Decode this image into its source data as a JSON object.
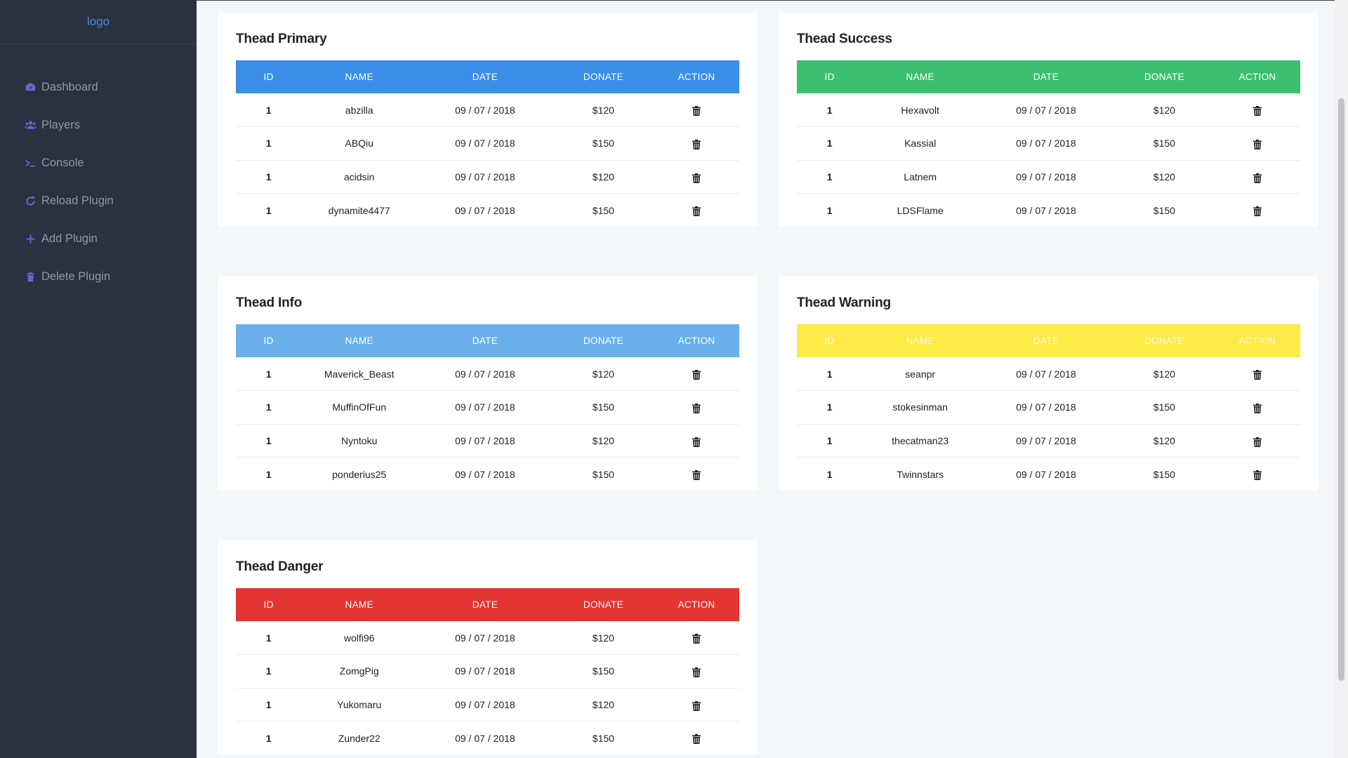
{
  "sidebar": {
    "logo": "logo",
    "items": [
      {
        "label": "Dashboard",
        "icon": "dashboard-icon"
      },
      {
        "label": "Players",
        "icon": "users-icon"
      },
      {
        "label": "Console",
        "icon": "terminal-icon"
      },
      {
        "label": "Reload Plugin",
        "icon": "reload-icon"
      },
      {
        "label": "Add Plugin",
        "icon": "plus-icon"
      },
      {
        "label": "Delete Plugin",
        "icon": "trash-icon"
      }
    ]
  },
  "columns": [
    "ID",
    "NAME",
    "DATE",
    "DONATE",
    "ACTION"
  ],
  "colors": {
    "primary": "#3a8ee6",
    "success": "#3cbf6f",
    "info": "#6ab0ea",
    "warning": "#fdeb45",
    "danger": "#e43533"
  },
  "cards": {
    "primary": {
      "title": "Thead Primary",
      "rows": [
        {
          "id": "1",
          "name": "abzilla",
          "date": "09 / 07 / 2018",
          "donate": "$120"
        },
        {
          "id": "1",
          "name": "ABQiu",
          "date": "09 / 07 / 2018",
          "donate": "$150"
        },
        {
          "id": "1",
          "name": "acidsin",
          "date": "09 / 07 / 2018",
          "donate": "$120"
        },
        {
          "id": "1",
          "name": "dynamite4477",
          "date": "09 / 07 / 2018",
          "donate": "$150"
        }
      ]
    },
    "success": {
      "title": "Thead Success",
      "rows": [
        {
          "id": "1",
          "name": "Hexavolt",
          "date": "09 / 07 / 2018",
          "donate": "$120"
        },
        {
          "id": "1",
          "name": "Kassial",
          "date": "09 / 07 / 2018",
          "donate": "$150"
        },
        {
          "id": "1",
          "name": "Latnem",
          "date": "09 / 07 / 2018",
          "donate": "$120"
        },
        {
          "id": "1",
          "name": "LDSFlame",
          "date": "09 / 07 / 2018",
          "donate": "$150"
        }
      ]
    },
    "info": {
      "title": "Thead Info",
      "rows": [
        {
          "id": "1",
          "name": "Maverick_Beast",
          "date": "09 / 07 / 2018",
          "donate": "$120"
        },
        {
          "id": "1",
          "name": "MuffinOfFun",
          "date": "09 / 07 / 2018",
          "donate": "$150"
        },
        {
          "id": "1",
          "name": "Nyntoku",
          "date": "09 / 07 / 2018",
          "donate": "$120"
        },
        {
          "id": "1",
          "name": "ponderius25",
          "date": "09 / 07 / 2018",
          "donate": "$150"
        }
      ]
    },
    "warning": {
      "title": "Thead Warning",
      "rows": [
        {
          "id": "1",
          "name": "seanpr",
          "date": "09 / 07 / 2018",
          "donate": "$120"
        },
        {
          "id": "1",
          "name": "stokesinman",
          "date": "09 / 07 / 2018",
          "donate": "$150"
        },
        {
          "id": "1",
          "name": "thecatman23",
          "date": "09 / 07 / 2018",
          "donate": "$120"
        },
        {
          "id": "1",
          "name": "Twinnstars",
          "date": "09 / 07 / 2018",
          "donate": "$150"
        }
      ]
    },
    "danger": {
      "title": "Thead Danger",
      "rows": [
        {
          "id": "1",
          "name": "wolfi96",
          "date": "09 / 07 / 2018",
          "donate": "$120"
        },
        {
          "id": "1",
          "name": "ZomgPig",
          "date": "09 / 07 / 2018",
          "donate": "$150"
        },
        {
          "id": "1",
          "name": "Yukomaru",
          "date": "09 / 07 / 2018",
          "donate": "$120"
        },
        {
          "id": "1",
          "name": "Zunder22",
          "date": "09 / 07 / 2018",
          "donate": "$150"
        }
      ]
    }
  }
}
